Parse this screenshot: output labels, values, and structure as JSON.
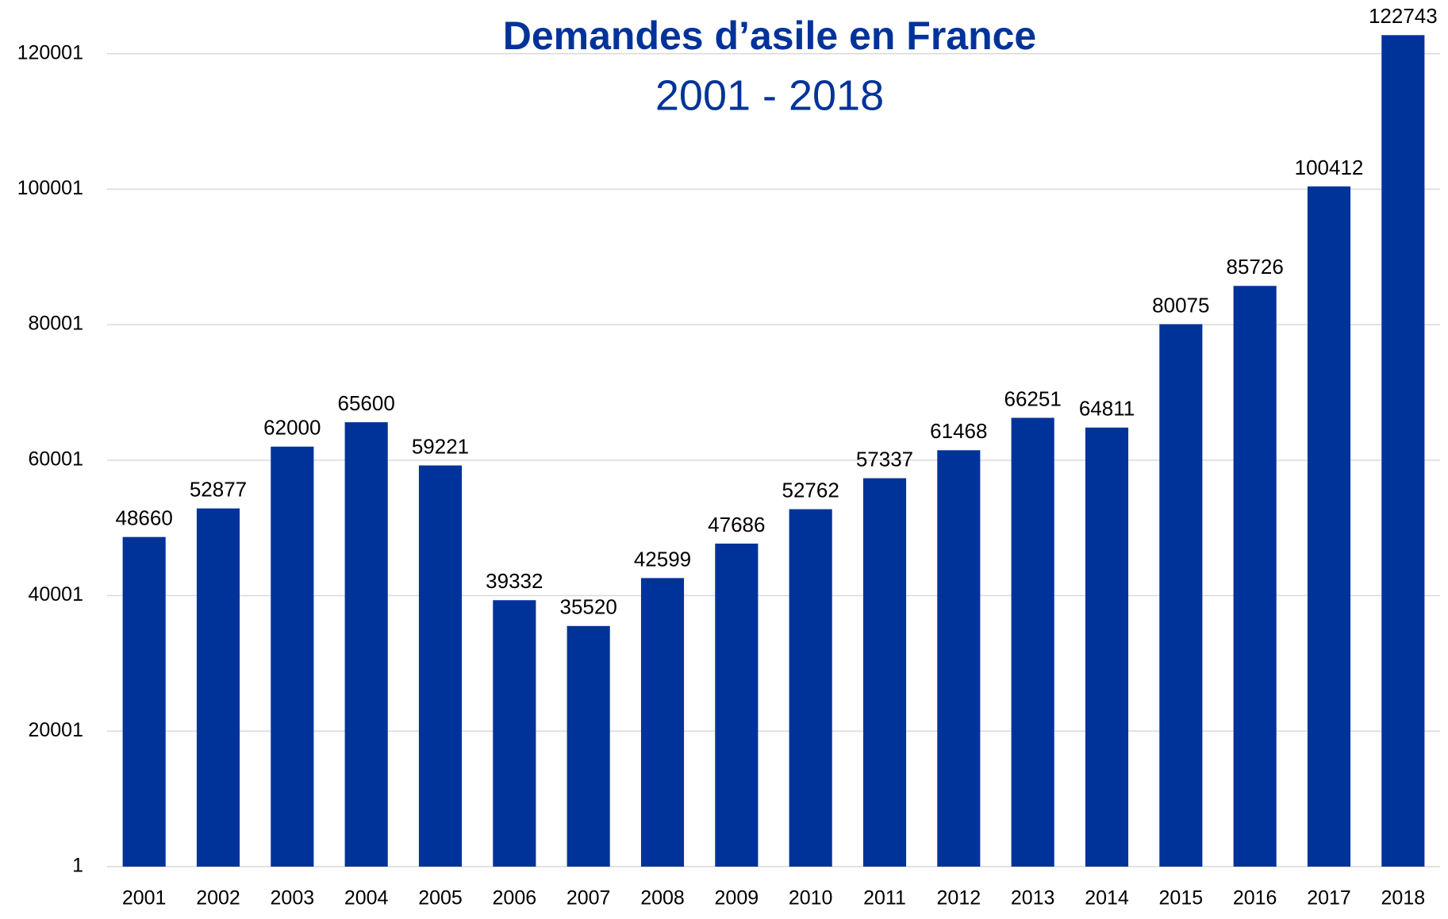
{
  "chart_data": {
    "type": "bar",
    "title": "Demandes d’asile en France",
    "subtitle": "2001 - 2018",
    "categories": [
      "2001",
      "2002",
      "2003",
      "2004",
      "2005",
      "2006",
      "2007",
      "2008",
      "2009",
      "2010",
      "2011",
      "2012",
      "2013",
      "2014",
      "2015",
      "2016",
      "2017",
      "2018"
    ],
    "values": [
      48660,
      52877,
      62000,
      65600,
      59221,
      39332,
      35520,
      42599,
      47686,
      52762,
      57337,
      61468,
      66251,
      64811,
      80075,
      85726,
      100412,
      122743
    ],
    "color": "#003399",
    "ylim": [
      1,
      125001
    ],
    "yticks": [
      1,
      20001,
      40001,
      60001,
      80001,
      100001,
      120001
    ],
    "grid": true
  }
}
